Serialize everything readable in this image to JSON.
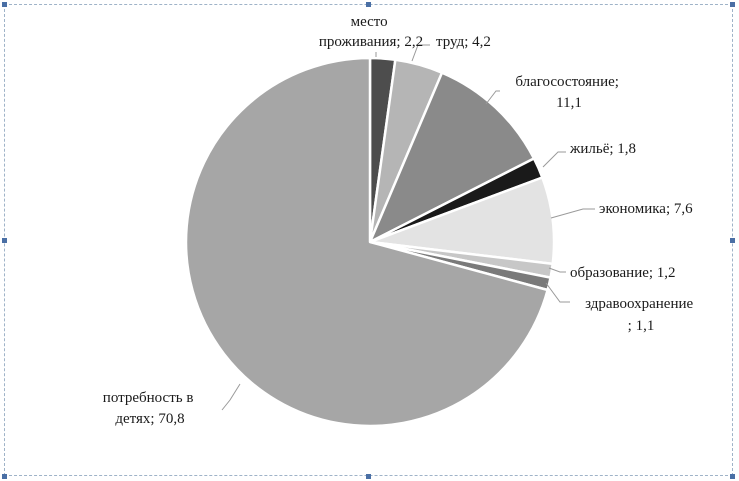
{
  "chart_data": {
    "type": "pie",
    "title": "",
    "slices": [
      {
        "label": "место проживания",
        "value": 2.2,
        "color": "#4d4d4d"
      },
      {
        "label": "труд",
        "value": 4.2,
        "color": "#b5b5b5"
      },
      {
        "label": "благосостояние",
        "value": 11.1,
        "color": "#8a8a8a"
      },
      {
        "label": "жильё",
        "value": 1.8,
        "color": "#1a1a1a"
      },
      {
        "label": "экономика",
        "value": 7.6,
        "color": "#e3e3e3"
      },
      {
        "label": "образование",
        "value": 1.2,
        "color": "#c7c7c7"
      },
      {
        "label": "здравоохранение",
        "value": 1.1,
        "color": "#7a7a7a"
      },
      {
        "label": "потребность в детях",
        "value": 70.8,
        "color": "#a6a6a6"
      }
    ],
    "data_labels": {
      "place": [
        "место",
        "проживания;  2,2"
      ],
      "labor": [
        "труд; 4,2"
      ],
      "welfare": [
        "благосостояние;",
        "11,1"
      ],
      "housing": [
        "жильё;  1,8"
      ],
      "economy": [
        "экономика;  7,6"
      ],
      "education": [
        "образование;  1,2"
      ],
      "health": [
        "здравоохранение",
        "; 1,1"
      ],
      "children": [
        "потребность в",
        "детях; 70,8"
      ]
    },
    "legend": "none"
  }
}
